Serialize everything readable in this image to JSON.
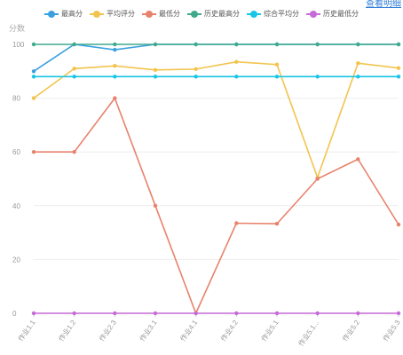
{
  "top_link": "查看明细",
  "chart_data": {
    "type": "line",
    "title": "",
    "xlabel": "",
    "ylabel": "分数",
    "ylim": [
      0,
      100
    ],
    "yticks": [
      0,
      20,
      40,
      60,
      80,
      100
    ],
    "grid": true,
    "legend_position": "top-center",
    "categories": [
      "作业1.1",
      "作业1.2",
      "作业2.3",
      "作业3.1",
      "作业4.1",
      "作业4.2",
      "作业5.1",
      "作业5.1...",
      "作业5.2",
      "作业5.3"
    ],
    "series": [
      {
        "name": "最高分",
        "color": "#3aa0e0",
        "values": [
          90,
          100,
          98,
          100,
          100,
          100,
          100,
          100,
          100,
          100
        ]
      },
      {
        "name": "平均评分",
        "color": "#f2c44d",
        "values": [
          80,
          91,
          92,
          90.5,
          90.8,
          93.5,
          92.5,
          50.5,
          93,
          91.2
        ]
      },
      {
        "name": "最低分",
        "color": "#e8826c",
        "values": [
          60,
          60,
          80,
          40,
          0,
          33.5,
          33.3,
          50,
          57.3,
          33
        ]
      },
      {
        "name": "历史最高分",
        "color": "#3fa98c",
        "values": [
          100,
          100,
          100,
          100,
          100,
          100,
          100,
          100,
          100,
          100
        ]
      },
      {
        "name": "综合平均分",
        "color": "#17c6e6",
        "values": [
          88,
          88,
          88,
          88,
          88,
          88,
          88,
          88,
          88,
          88
        ]
      },
      {
        "name": "历史最低分",
        "color": "#c56ad6",
        "values": [
          0,
          0,
          0,
          0,
          0,
          0,
          0,
          0,
          0,
          0
        ]
      }
    ]
  }
}
